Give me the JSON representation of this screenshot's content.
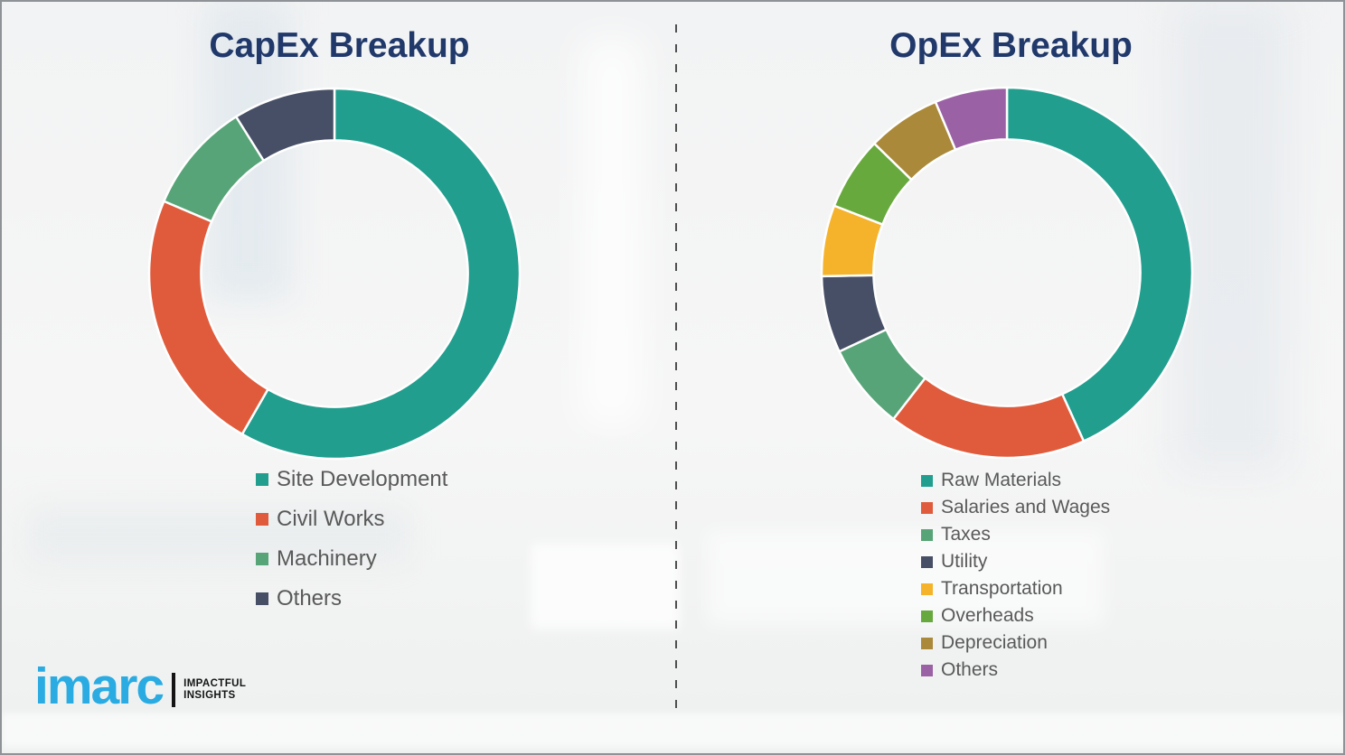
{
  "page": {
    "background_color": "#f3f4f4",
    "border_color": "#8f9296",
    "divider_style": "vertical-dashed",
    "divider_color": "#4f4f4f"
  },
  "chart_data": [
    {
      "type": "pie",
      "variant": "donut",
      "title": "CapEx Breakup",
      "labels": [
        "Site Development",
        "Civil Works",
        "Machinery",
        "Others"
      ],
      "values": [
        58.3,
        23.1,
        9.7,
        8.9
      ],
      "colors": [
        "#219e8e",
        "#e05b3c",
        "#57a478",
        "#474f66"
      ],
      "start_angle_deg": 0,
      "direction": "clockwise",
      "inner_radius_ratio": 0.72,
      "segment_gap_color": "#ffffff",
      "legend_position": "below-left",
      "data_labels_shown": false
    },
    {
      "type": "pie",
      "variant": "donut",
      "title": "OpEx Breakup",
      "labels": [
        "Raw Materials",
        "Salaries and Wages",
        "Taxes",
        "Utility",
        "Transportation",
        "Overheads",
        "Depreciation",
        "Others"
      ],
      "values": [
        43.2,
        17.3,
        7.5,
        6.7,
        6.2,
        6.4,
        6.4,
        6.3
      ],
      "colors": [
        "#219e8e",
        "#e05b3c",
        "#57a478",
        "#474f66",
        "#f5b32b",
        "#68a93d",
        "#aa8a3a",
        "#9a62a5"
      ],
      "start_angle_deg": 0,
      "direction": "clockwise",
      "inner_radius_ratio": 0.72,
      "segment_gap_color": "#ffffff",
      "legend_position": "below-left",
      "data_labels_shown": false
    }
  ],
  "title_color": "#20386a",
  "legend_text_color": "#595959",
  "logo": {
    "brand": "imarc",
    "brand_color": "#2aabe2",
    "tagline_line1": "IMPACTFUL",
    "tagline_line2": "INSIGHTS",
    "tagline_color": "#141414"
  }
}
